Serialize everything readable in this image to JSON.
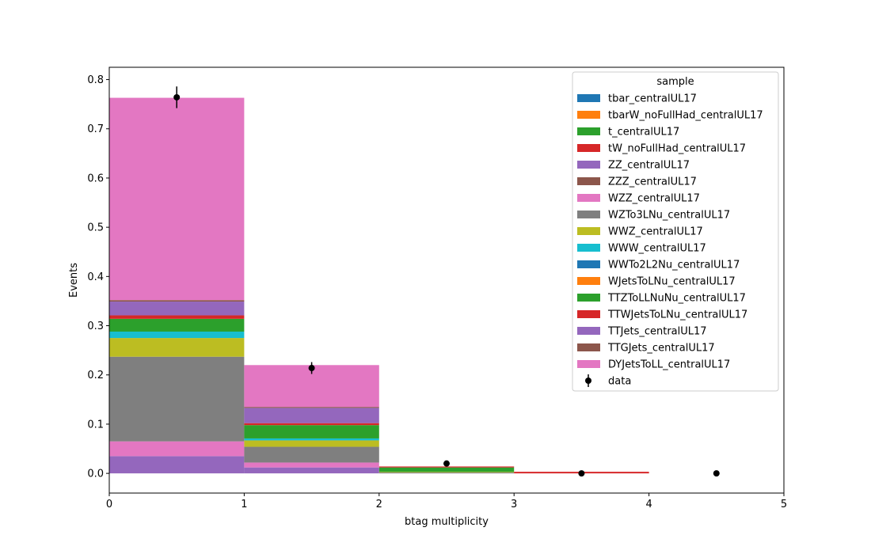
{
  "chart_data": {
    "type": "bar",
    "stacked": true,
    "xlabel": "btag multiplicity",
    "ylabel": "Events",
    "xlim": [
      0,
      5
    ],
    "ylim": [
      -0.04,
      0.825
    ],
    "bin_edges": [
      0,
      1,
      2,
      3,
      4,
      5
    ],
    "x_ticks": [
      0,
      1,
      2,
      3,
      4,
      5
    ],
    "y_ticks": [
      0.0,
      0.1,
      0.2,
      0.3,
      0.4,
      0.5,
      0.6,
      0.7,
      0.8
    ],
    "grid": false,
    "legend_title": "sample",
    "legend_position": "top-right",
    "series": [
      {
        "name": "tbar_centralUL17",
        "color": "#1f77b4",
        "values": [
          0.0,
          0.0,
          0.0,
          0.0,
          0.0
        ]
      },
      {
        "name": "tbarW_noFullHad_centralUL17",
        "color": "#ff7f0e",
        "values": [
          0.0,
          0.0,
          0.0,
          0.0,
          0.0
        ]
      },
      {
        "name": "t_centralUL17",
        "color": "#2ca02c",
        "values": [
          0.0,
          0.0,
          0.0,
          0.0,
          0.0
        ]
      },
      {
        "name": "tW_noFullHad_centralUL17",
        "color": "#d62728",
        "values": [
          0.0,
          0.0,
          0.0,
          0.0,
          0.0
        ]
      },
      {
        "name": "ZZ_centralUL17",
        "color": "#9467bd",
        "values": [
          0.035,
          0.012,
          0.0,
          0.0,
          0.0
        ]
      },
      {
        "name": "ZZZ_centralUL17",
        "color": "#8c564b",
        "values": [
          0.0,
          0.0,
          0.0,
          0.0,
          0.0
        ]
      },
      {
        "name": "WZZ_centralUL17",
        "color": "#e377c2",
        "values": [
          0.03,
          0.01,
          0.0,
          0.0,
          0.0
        ]
      },
      {
        "name": "WZTo3LNu_centralUL17",
        "color": "#7f7f7f",
        "values": [
          0.172,
          0.032,
          0.002,
          0.0,
          0.0
        ]
      },
      {
        "name": "WWZ_centralUL17",
        "color": "#bcbd22",
        "values": [
          0.038,
          0.013,
          0.001,
          0.0,
          0.0
        ]
      },
      {
        "name": "WWW_centralUL17",
        "color": "#17becf",
        "values": [
          0.013,
          0.004,
          0.0,
          0.0,
          0.0
        ]
      },
      {
        "name": "WWTo2L2Nu_centralUL17",
        "color": "#1f77b4",
        "values": [
          0.0,
          0.0,
          0.0,
          0.0,
          0.0
        ]
      },
      {
        "name": "WJetsToLNu_centralUL17",
        "color": "#ff7f0e",
        "values": [
          0.0,
          0.0,
          0.0,
          0.0,
          0.0
        ]
      },
      {
        "name": "TTZToLLNuNu_centralUL17",
        "color": "#2ca02c",
        "values": [
          0.026,
          0.027,
          0.009,
          0.0,
          0.0
        ]
      },
      {
        "name": "TTWJetsToLNu_centralUL17",
        "color": "#d62728",
        "values": [
          0.007,
          0.004,
          0.002,
          0.002,
          0.0
        ]
      },
      {
        "name": "TTJets_centralUL17",
        "color": "#9467bd",
        "values": [
          0.028,
          0.031,
          0.0,
          0.0,
          0.0
        ]
      },
      {
        "name": "TTGJets_centralUL17",
        "color": "#8c564b",
        "values": [
          0.003,
          0.002,
          0.0,
          0.0,
          0.0
        ]
      },
      {
        "name": "DYJetsToLL_centralUL17",
        "color": "#e377c2",
        "values": [
          0.411,
          0.085,
          0.0,
          0.0,
          0.0
        ]
      }
    ],
    "data_series": {
      "name": "data",
      "color": "#000000",
      "x": [
        0.5,
        1.5,
        2.5,
        3.5,
        4.5
      ],
      "y": [
        0.764,
        0.214,
        0.02,
        0.0,
        0.0
      ],
      "yerr": [
        0.022,
        0.012,
        0.004,
        0.0,
        0.0
      ]
    }
  }
}
